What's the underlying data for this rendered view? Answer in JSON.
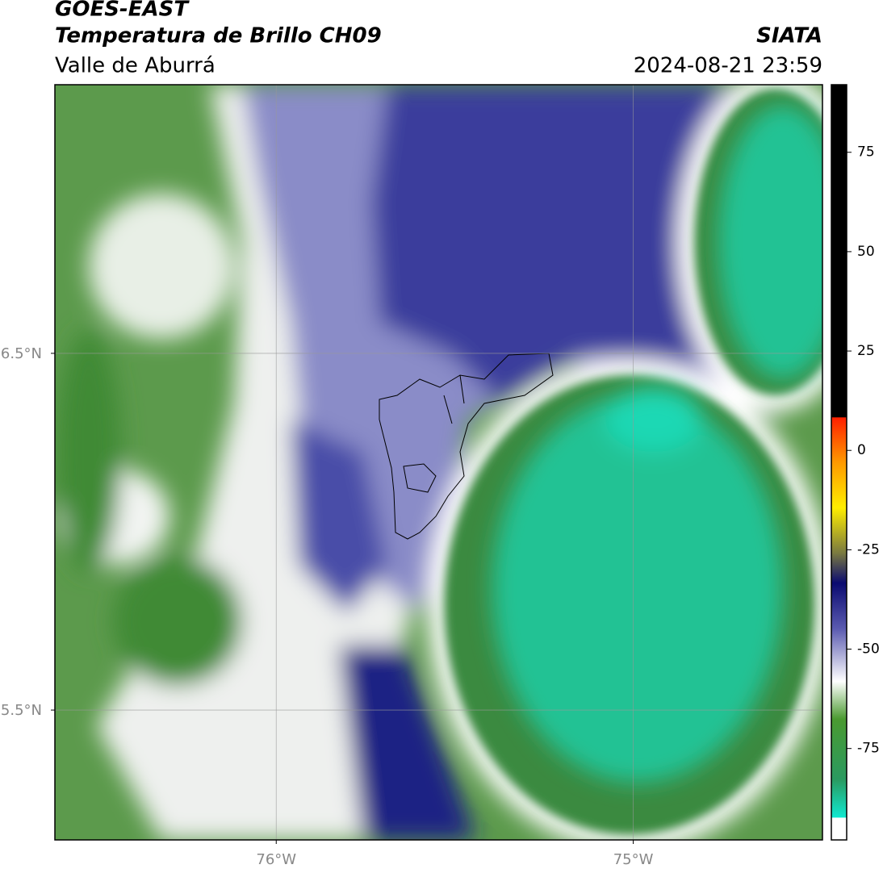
{
  "header": {
    "satellite": "GOES-EAST",
    "product": "Temperatura de Brillo CH09",
    "region": "Valle de Aburrá",
    "source": "SIATA",
    "timestamp": "2024-08-21 23:59"
  },
  "map": {
    "latlim": [
      5.136,
      7.253
    ],
    "lonlim": [
      -76.62,
      -74.47
    ],
    "latticks": [
      {
        "value": 6.5,
        "label": "6.5°N"
      },
      {
        "value": 5.5,
        "label": "5.5°N"
      }
    ],
    "lonticks": [
      {
        "value": -76,
        "label": "76°W"
      },
      {
        "value": -75,
        "label": "75°W"
      }
    ],
    "grid": true
  },
  "colorbar": {
    "lim": [
      -98,
      92
    ],
    "ticks": [
      75,
      50,
      25,
      0,
      -25,
      -50,
      -75
    ]
  }
}
